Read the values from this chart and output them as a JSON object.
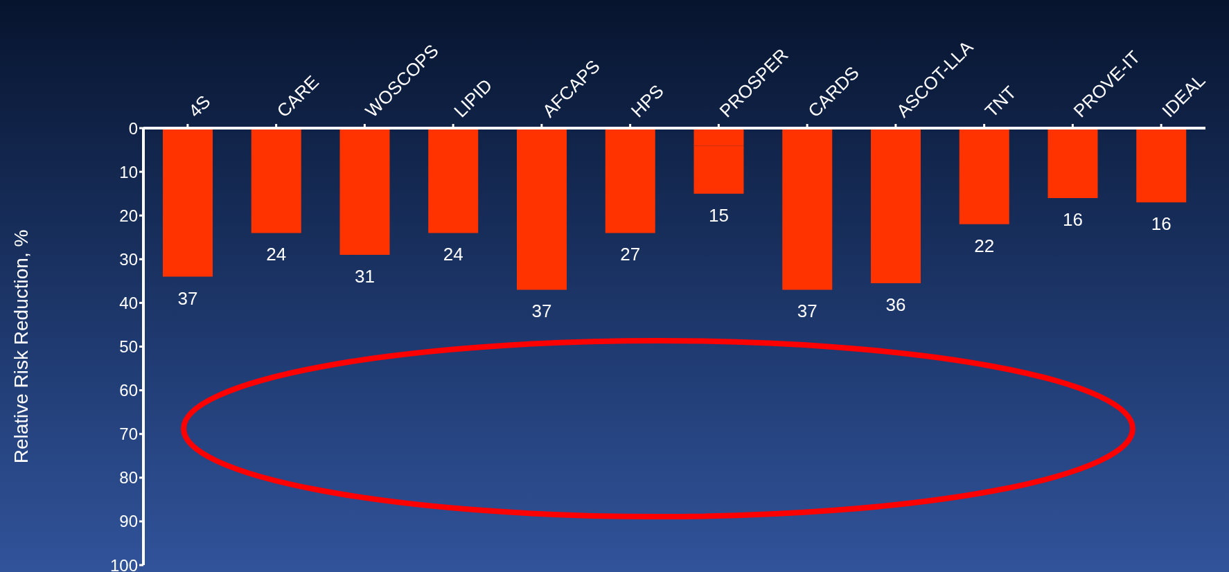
{
  "chart_data": {
    "type": "bar",
    "ylabel": "Relative Risk Reduction, %",
    "categories": [
      "4S",
      "CARE",
      "WOSCOPS",
      "LIPID",
      "AFCAPS",
      "HPS",
      "PROSPER",
      "CARDS",
      "ASCOT-LLA",
      "TNT",
      "PROVE-IT",
      "IDEAL"
    ],
    "series": [
      {
        "color": "#ff3300",
        "values": [
          34,
          24,
          29,
          24,
          37,
          24,
          4,
          37,
          35.5,
          22,
          16,
          17
        ]
      },
      {
        "color": "#ff3300",
        "values": [
          null,
          null,
          null,
          null,
          null,
          null,
          11,
          null,
          null,
          null,
          null,
          null
        ]
      }
    ],
    "stacked": true,
    "value_labels": [
      "37",
      "24",
      "31",
      "24",
      "37",
      "27",
      "15",
      "37",
      "36",
      "22",
      "16",
      "16"
    ],
    "ylim": [
      100,
      0
    ],
    "yticks": [
      0,
      10,
      20,
      30,
      40,
      50,
      60,
      70,
      80,
      90,
      100
    ],
    "grid": false
  }
}
